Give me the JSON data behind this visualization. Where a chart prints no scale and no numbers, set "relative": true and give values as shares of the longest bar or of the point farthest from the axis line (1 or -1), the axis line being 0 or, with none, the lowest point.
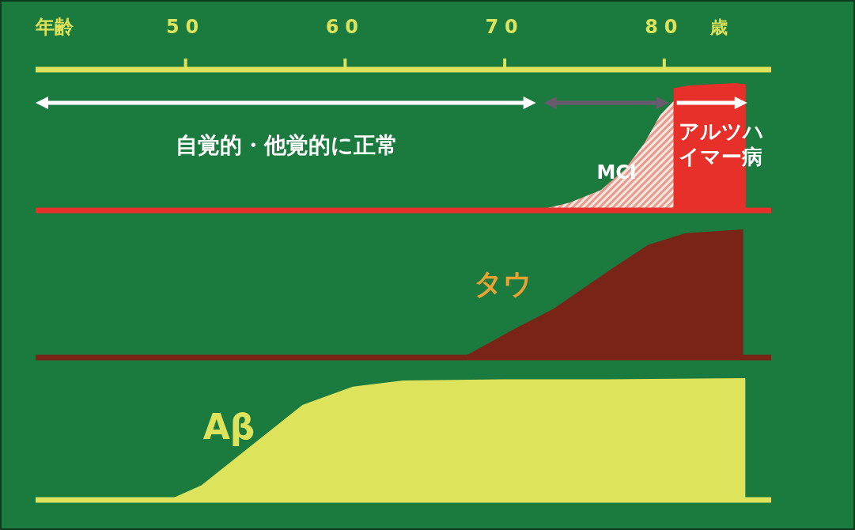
{
  "chart_data": [
    {
      "type": "area",
      "relative": true,
      "xlabel": "年齢",
      "xlim": [
        40.6,
        86.7
      ],
      "xticks": [
        50,
        60,
        70,
        80
      ],
      "tick_labels": "x",
      "annotations": [
        "自覚的・他覚的に正常",
        "歳"
      ],
      "series": [
        {
          "name": "MCI",
          "color": "#e89a8c",
          "x": [
            72.06,
            74.05,
            76.03,
            77.52,
            78.76,
            79.75,
            80.59
          ],
          "values": [
            0,
            0.06,
            0.16,
            0.32,
            0.53,
            0.75,
            0.86
          ]
        },
        {
          "name": "アルツハイマー病",
          "color": "#e8302a",
          "x": [
            80.59,
            81.48,
            82.97,
            84.46,
            85.1
          ],
          "values": [
            0.96,
            0.98,
            0.99,
            1.0,
            0.99
          ]
        }
      ]
    },
    {
      "type": "area",
      "relative": true,
      "xlim": [
        40.6,
        86.7
      ],
      "tick_labels": false,
      "series": [
        {
          "name": "タウ",
          "color": "#7a2418",
          "x": [
            67.35,
            70.57,
            73.05,
            74.69,
            76.67,
            79.0,
            81.33,
            84.95
          ],
          "values": [
            0,
            0.22,
            0.38,
            0.52,
            0.69,
            0.88,
            0.97,
            1.0
          ]
        }
      ]
    },
    {
      "type": "area",
      "relative": true,
      "xlim": [
        40.6,
        86.7
      ],
      "tick_labels": false,
      "series": [
        {
          "name": "Aβ",
          "color": "#dde35a",
          "x": [
            48.94,
            50.99,
            57.32,
            60.48,
            63.63,
            69.97,
            76.28,
            85.08
          ],
          "values": [
            0,
            0.12,
            0.78,
            0.93,
            0.98,
            0.99,
            0.99,
            1.0
          ]
        }
      ]
    }
  ]
}
